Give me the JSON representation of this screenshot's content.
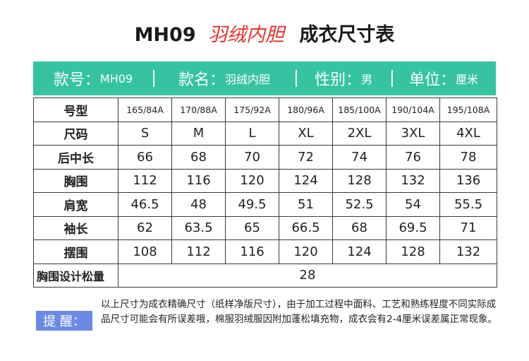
{
  "title": {
    "code": "MH09",
    "name": "羽绒内胆",
    "suffix": "成衣尺寸表"
  },
  "info": [
    {
      "key": "款号：",
      "value": "MH09"
    },
    {
      "key": "款名：",
      "value": "羽绒内胆"
    },
    {
      "key": "性别：",
      "value": "男"
    },
    {
      "key": "单位：",
      "value": "厘米"
    }
  ],
  "table": {
    "rows": [
      {
        "label": "号型",
        "values": [
          "165/84A",
          "170/88A",
          "175/92A",
          "180/96A",
          "185/100A",
          "190/104A",
          "195/108A"
        ]
      },
      {
        "label": "尺码",
        "values": [
          "S",
          "M",
          "L",
          "XL",
          "2XL",
          "3XL",
          "4XL"
        ]
      },
      {
        "label": "后中长",
        "values": [
          "66",
          "68",
          "70",
          "72",
          "74",
          "76",
          "78"
        ]
      },
      {
        "label": "胸围",
        "values": [
          "112",
          "116",
          "120",
          "124",
          "128",
          "132",
          "136"
        ]
      },
      {
        "label": "肩宽",
        "values": [
          "46.5",
          "48",
          "49.5",
          "51",
          "52.5",
          "54",
          "55.5"
        ]
      },
      {
        "label": "袖长",
        "values": [
          "62",
          "63.5",
          "65",
          "66.5",
          "68",
          "69.5",
          "71"
        ]
      },
      {
        "label": "摆围",
        "values": [
          "108",
          "112",
          "116",
          "120",
          "124",
          "128",
          "132"
        ]
      }
    ],
    "ease": {
      "label": "胸围设计松量",
      "value": "28"
    }
  },
  "note": {
    "tag": "提 醒：",
    "text": "以上尺寸为成衣精确尺寸（纸样净版尺寸），由于加工过程中面料、工艺和熟练程度不同实际成品尺寸可能会有所误差哦，棉服羽绒服因附加蓬松填充物，成衣会有2-4厘米误差属正常现象。"
  },
  "colors": {
    "accent": "#36c3a1",
    "title_name": "#e8312b",
    "note_tag": "#6a8ae6"
  }
}
